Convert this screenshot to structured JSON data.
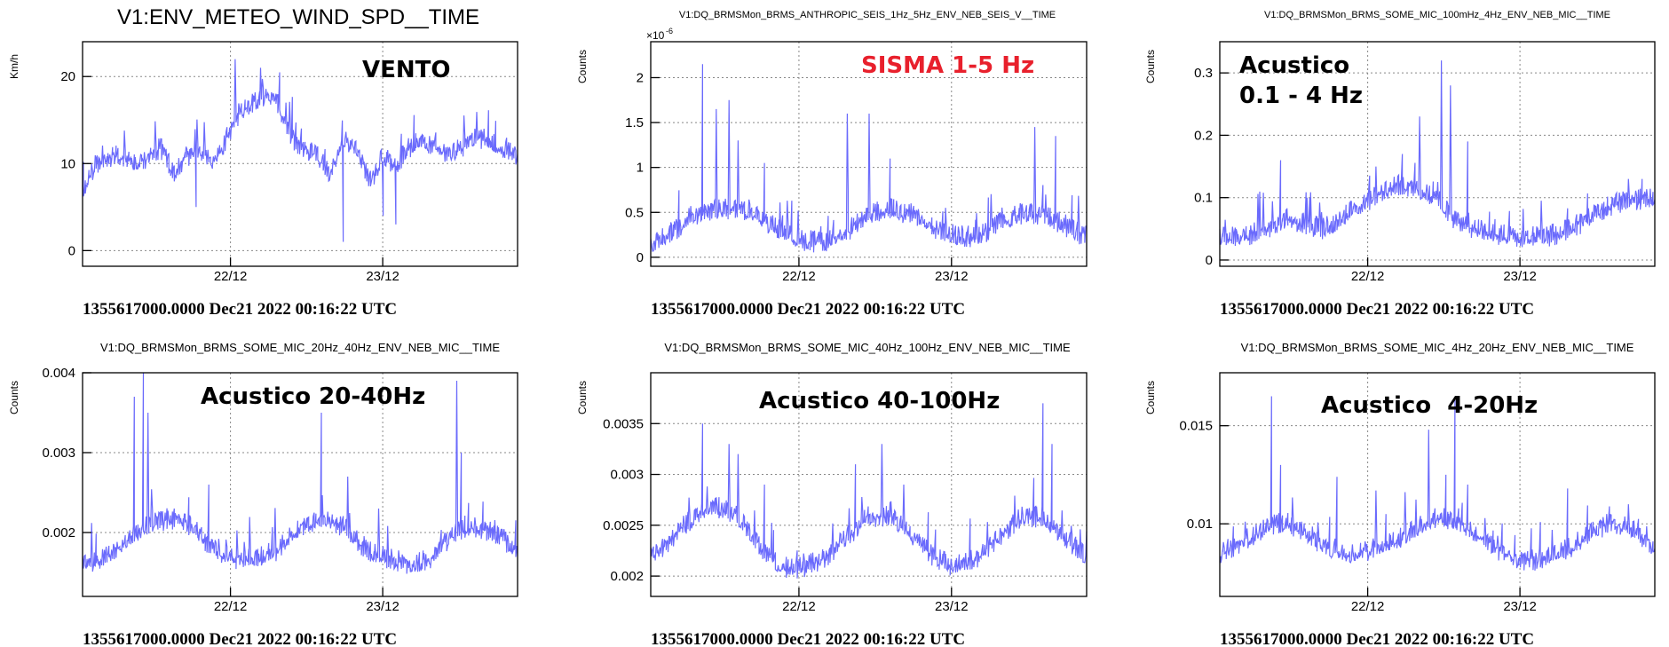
{
  "footer_text": "1355617000.0000 Dec21 2022 00:16:22 UTC",
  "series_color": "#6a6afc",
  "chart_data": [
    {
      "type": "line",
      "title": "V1:ENV_METEO_WIND_SPD__TIME",
      "ylabel": "Km/h",
      "annotation": "VENTO",
      "annotation_color": "#000000",
      "xticks": [
        "22/12",
        "23/12"
      ],
      "yticks": [
        "0",
        "10",
        "20"
      ],
      "ylim": [
        -1.8,
        24
      ],
      "grid": true,
      "x": [
        0,
        0.03,
        0.06,
        0.09,
        0.12,
        0.15,
        0.18,
        0.21,
        0.24,
        0.27,
        0.3,
        0.33,
        0.36,
        0.39,
        0.42,
        0.45,
        0.48,
        0.51,
        0.54,
        0.57,
        0.6,
        0.63,
        0.66,
        0.69,
        0.72,
        0.75,
        0.78,
        0.81,
        0.84,
        0.87,
        0.9,
        0.93,
        0.96,
        1.0
      ],
      "y": [
        7,
        10,
        11,
        11,
        10,
        11,
        12,
        9,
        11,
        12,
        10,
        13,
        16,
        17,
        18,
        17,
        13,
        12,
        11,
        9,
        13,
        12,
        8,
        11,
        10,
        12,
        13,
        12,
        11,
        12,
        13,
        13,
        12,
        11
      ],
      "peaks": [
        [
          0.35,
          22
        ],
        [
          0.41,
          21
        ],
        [
          0.26,
          5
        ],
        [
          0.6,
          1
        ],
        [
          0.69,
          4
        ],
        [
          0.72,
          3
        ]
      ]
    },
    {
      "type": "line",
      "title": "V1:DQ_BRMSMon_BRMS_ANTHROPIC_SEIS_1Hz_5Hz_ENV_NEB_SEIS_V__TIME",
      "ylabel": "Counts",
      "exponent": "×10",
      "exponent_power": "-6",
      "annotation": "SISMA 1-5 Hz",
      "annotation_color": "#e8202c",
      "xticks": [
        "22/12",
        "23/12"
      ],
      "yticks": [
        "0",
        "0.5",
        "1",
        "1.5",
        "2"
      ],
      "ylim": [
        -0.1,
        2.4
      ],
      "grid": true,
      "x": [
        0,
        0.05,
        0.1,
        0.15,
        0.2,
        0.25,
        0.3,
        0.35,
        0.4,
        0.45,
        0.5,
        0.55,
        0.6,
        0.65,
        0.7,
        0.75,
        0.8,
        0.85,
        0.9,
        0.95,
        1.0
      ],
      "y": [
        0.15,
        0.3,
        0.5,
        0.55,
        0.55,
        0.45,
        0.3,
        0.2,
        0.18,
        0.3,
        0.5,
        0.55,
        0.5,
        0.35,
        0.25,
        0.25,
        0.4,
        0.5,
        0.5,
        0.35,
        0.25
      ],
      "peaks": [
        [
          0.12,
          2.15
        ],
        [
          0.15,
          1.65
        ],
        [
          0.18,
          1.75
        ],
        [
          0.2,
          1.3
        ],
        [
          0.26,
          1.05
        ],
        [
          0.45,
          1.6
        ],
        [
          0.5,
          1.6
        ],
        [
          0.55,
          1.1
        ],
        [
          0.88,
          1.45
        ],
        [
          0.93,
          1.35
        ]
      ]
    },
    {
      "type": "line",
      "title": "V1:DQ_BRMSMon_BRMS_SOME_MIC_100mHz_4Hz_ENV_NEB_MIC__TIME",
      "ylabel": "Counts",
      "annotation": "Acustico\n0.1 - 4 Hz",
      "annotation_color": "#000000",
      "xticks": [
        "22/12",
        "23/12"
      ],
      "yticks": [
        "0",
        "0.1",
        "0.2",
        "0.3"
      ],
      "ylim": [
        -0.01,
        0.35
      ],
      "grid": true,
      "x": [
        0,
        0.05,
        0.1,
        0.15,
        0.2,
        0.25,
        0.3,
        0.35,
        0.4,
        0.45,
        0.5,
        0.55,
        0.6,
        0.65,
        0.7,
        0.75,
        0.8,
        0.85,
        0.9,
        0.95,
        1.0
      ],
      "y": [
        0.04,
        0.04,
        0.05,
        0.07,
        0.06,
        0.05,
        0.08,
        0.1,
        0.12,
        0.12,
        0.1,
        0.06,
        0.05,
        0.04,
        0.04,
        0.04,
        0.05,
        0.07,
        0.09,
        0.1,
        0.1
      ],
      "peaks": [
        [
          0.14,
          0.16
        ],
        [
          0.2,
          0.1
        ],
        [
          0.36,
          0.15
        ],
        [
          0.42,
          0.17
        ],
        [
          0.46,
          0.23
        ],
        [
          0.51,
          0.32
        ],
        [
          0.53,
          0.28
        ],
        [
          0.57,
          0.19
        ],
        [
          0.94,
          0.13
        ],
        [
          0.97,
          0.13
        ]
      ]
    },
    {
      "type": "line",
      "title": "V1:DQ_BRMSMon_BRMS_SOME_MIC_20Hz_40Hz_ENV_NEB_MIC__TIME",
      "ylabel": "Counts",
      "annotation": "Acustico 20-40Hz",
      "annotation_color": "#000000",
      "xticks": [
        "22/12",
        "23/12"
      ],
      "yticks": [
        "0.002",
        "0.003",
        "0.004"
      ],
      "ylim": [
        0.0012,
        0.004
      ],
      "grid": true,
      "x": [
        0,
        0.05,
        0.1,
        0.15,
        0.2,
        0.25,
        0.3,
        0.35,
        0.4,
        0.45,
        0.5,
        0.55,
        0.6,
        0.65,
        0.7,
        0.75,
        0.8,
        0.85,
        0.9,
        0.95,
        1.0
      ],
      "y": [
        0.0016,
        0.0017,
        0.0019,
        0.0021,
        0.0022,
        0.0021,
        0.0018,
        0.0017,
        0.0017,
        0.0018,
        0.0021,
        0.0022,
        0.0021,
        0.0018,
        0.0017,
        0.0016,
        0.0017,
        0.002,
        0.0021,
        0.002,
        0.0018
      ],
      "peaks": [
        [
          0.12,
          0.0037
        ],
        [
          0.14,
          0.004
        ],
        [
          0.15,
          0.0035
        ],
        [
          0.21,
          0.0023
        ],
        [
          0.29,
          0.0026
        ],
        [
          0.55,
          0.0035
        ],
        [
          0.61,
          0.0027
        ],
        [
          0.68,
          0.0023
        ],
        [
          0.86,
          0.0039
        ],
        [
          0.87,
          0.003
        ]
      ]
    },
    {
      "type": "line",
      "title": "V1:DQ_BRMSMon_BRMS_SOME_MIC_40Hz_100Hz_ENV_NEB_MIC__TIME",
      "ylabel": "Counts",
      "annotation": "Acustico 40-100Hz",
      "annotation_color": "#000000",
      "xticks": [
        "22/12",
        "23/12"
      ],
      "yticks": [
        "0.002",
        "0.0025",
        "0.003",
        "0.0035"
      ],
      "ylim": [
        0.0018,
        0.004
      ],
      "grid": true,
      "x": [
        0,
        0.05,
        0.1,
        0.15,
        0.2,
        0.25,
        0.3,
        0.35,
        0.4,
        0.45,
        0.5,
        0.55,
        0.6,
        0.65,
        0.7,
        0.75,
        0.8,
        0.85,
        0.9,
        0.95,
        1.0
      ],
      "y": [
        0.0022,
        0.0024,
        0.0026,
        0.0027,
        0.0026,
        0.0023,
        0.0021,
        0.0021,
        0.0022,
        0.0024,
        0.0026,
        0.0026,
        0.0024,
        0.0022,
        0.0021,
        0.0022,
        0.0024,
        0.0026,
        0.0026,
        0.0024,
        0.0022
      ],
      "peaks": [
        [
          0.12,
          0.0038
        ],
        [
          0.12,
          0.0035
        ],
        [
          0.18,
          0.0033
        ],
        [
          0.2,
          0.0032
        ],
        [
          0.26,
          0.0029
        ],
        [
          0.47,
          0.0031
        ],
        [
          0.53,
          0.0033
        ],
        [
          0.58,
          0.0029
        ],
        [
          0.9,
          0.0037
        ],
        [
          0.92,
          0.0033
        ]
      ]
    },
    {
      "type": "line",
      "title": "V1:DQ_BRMSMon_BRMS_SOME_MIC_4Hz_20Hz_ENV_NEB_MIC__TIME",
      "ylabel": "Counts",
      "annotation": "Acustico  4-20Hz",
      "annotation_color": "#000000",
      "xticks": [
        "22/12",
        "23/12"
      ],
      "yticks": [
        "0.01",
        "0.015"
      ],
      "ylim": [
        0.0063,
        0.0177
      ],
      "grid": true,
      "x": [
        0,
        0.05,
        0.1,
        0.15,
        0.2,
        0.25,
        0.3,
        0.35,
        0.4,
        0.45,
        0.5,
        0.55,
        0.6,
        0.65,
        0.7,
        0.75,
        0.8,
        0.85,
        0.9,
        0.95,
        1.0
      ],
      "y": [
        0.0085,
        0.0092,
        0.0098,
        0.0102,
        0.0096,
        0.0088,
        0.0085,
        0.0088,
        0.0092,
        0.0098,
        0.0104,
        0.0102,
        0.0094,
        0.0086,
        0.0082,
        0.0083,
        0.0088,
        0.0096,
        0.0102,
        0.0098,
        0.0088
      ],
      "peaks": [
        [
          0.12,
          0.0165
        ],
        [
          0.14,
          0.013
        ],
        [
          0.27,
          0.0124
        ],
        [
          0.36,
          0.0117
        ],
        [
          0.48,
          0.0148
        ],
        [
          0.52,
          0.0125
        ],
        [
          0.54,
          0.0163
        ],
        [
          0.57,
          0.012
        ],
        [
          0.8,
          0.0118
        ],
        [
          0.94,
          0.011
        ]
      ]
    }
  ]
}
